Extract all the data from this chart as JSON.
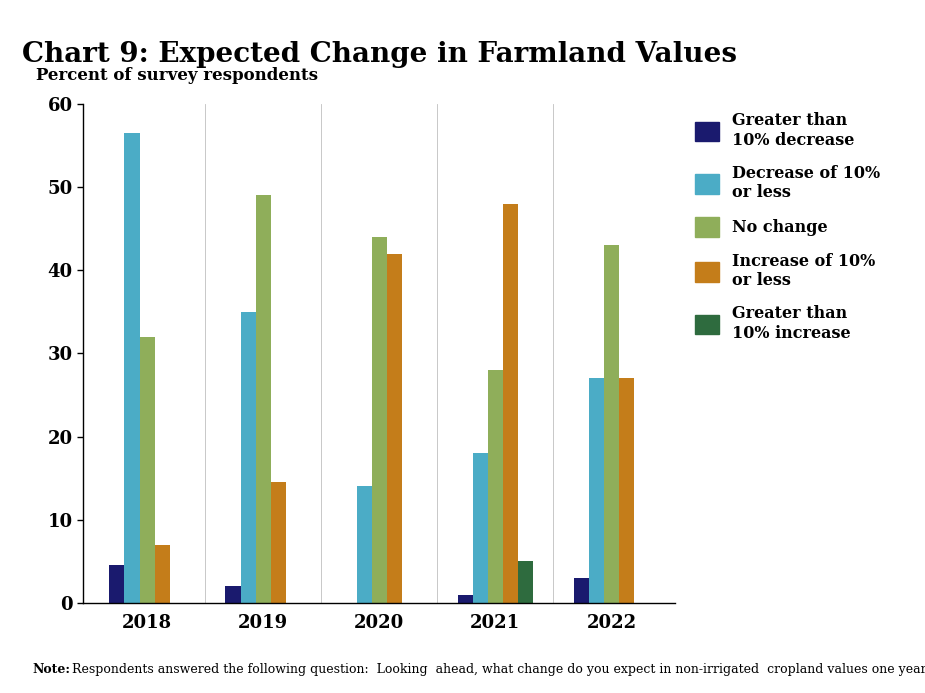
{
  "title": "Chart 9: Expected Change in Farmland Values",
  "ylabel": "Percent of survey respondents",
  "years": [
    "2018",
    "2019",
    "2020",
    "2021",
    "2022"
  ],
  "series": {
    "Greater than\n10% decrease": [
      4.5,
      2,
      0,
      1,
      3
    ],
    "Decrease of 10%\nor less": [
      56.5,
      35,
      14,
      18,
      27
    ],
    "No change": [
      32,
      49,
      44,
      28,
      43
    ],
    "Increase of 10%\nor less": [
      7,
      14.5,
      42,
      48,
      27
    ],
    "Greater than\n10% increase": [
      0,
      0,
      0,
      5,
      0
    ]
  },
  "colors": {
    "Greater than\n10% decrease": "#1a1a6e",
    "Decrease of 10%\nor less": "#4bacc6",
    "No change": "#8fae5a",
    "Increase of 10%\nor less": "#c47d1a",
    "Greater than\n10% increase": "#2e6b3e"
  },
  "legend_labels": [
    "Greater than\n10% decrease",
    "Decrease of 10%\nor less",
    "No change",
    "Increase of 10%\nor less",
    "Greater than\n10% increase"
  ],
  "ylim": [
    0,
    60
  ],
  "yticks": [
    0,
    10,
    20,
    30,
    40,
    50,
    60
  ],
  "note_bold": "Note:",
  "note_regular": " Respondents answered the following question:  Looking  ahead, what change do you expect in non-irrigated  cropland values one year from now",
  "background_color": "#ffffff",
  "bar_width": 0.13
}
